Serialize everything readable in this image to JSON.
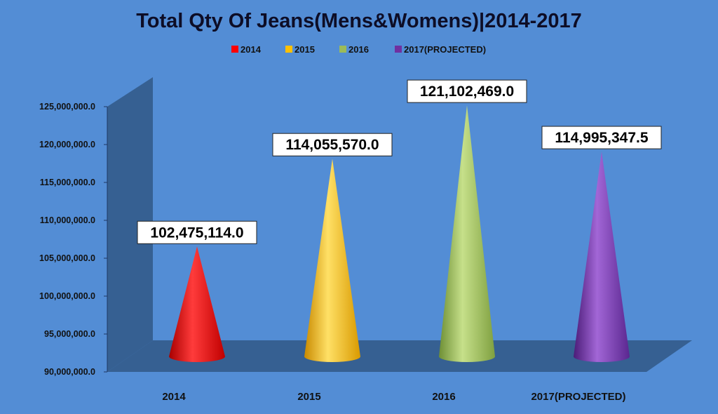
{
  "chart_data": {
    "type": "bar",
    "title": "Total Qty Of Jeans(Mens&Womens)|2014-2017",
    "categories": [
      "2014",
      "2015",
      "2016",
      "2017(PROJECTED)"
    ],
    "series": [
      {
        "values": [
          102475114.0,
          114055570.0,
          121102469.0,
          114995347.5
        ],
        "data_labels": [
          "102,475,114.0",
          "114,055,570.0",
          "121,102,469.0",
          "114,995,347.5"
        ]
      }
    ],
    "legend": {
      "placement": "top",
      "entries": [
        "2014",
        "2015",
        "2016",
        "2017(PROJECTED)"
      ]
    },
    "y_ticks": [
      90000000,
      95000000,
      100000000,
      105000000,
      110000000,
      115000000,
      120000000,
      125000000
    ],
    "y_tick_labels": [
      "90,000,000.0",
      "95,000,000.0",
      "100,000,000.0",
      "105,000,000.0",
      "110,000,000.0",
      "115,000,000.0",
      "120,000,000.0",
      "125,000,000.0"
    ],
    "ylim": [
      90000000,
      125000000
    ],
    "xlabel": "",
    "ylabel": "",
    "grid": false,
    "bar_shape": "cone",
    "colors": [
      "#FF0000",
      "#FFC000",
      "#9BBB59",
      "#7030A0"
    ],
    "background_color": "#538DD5"
  }
}
